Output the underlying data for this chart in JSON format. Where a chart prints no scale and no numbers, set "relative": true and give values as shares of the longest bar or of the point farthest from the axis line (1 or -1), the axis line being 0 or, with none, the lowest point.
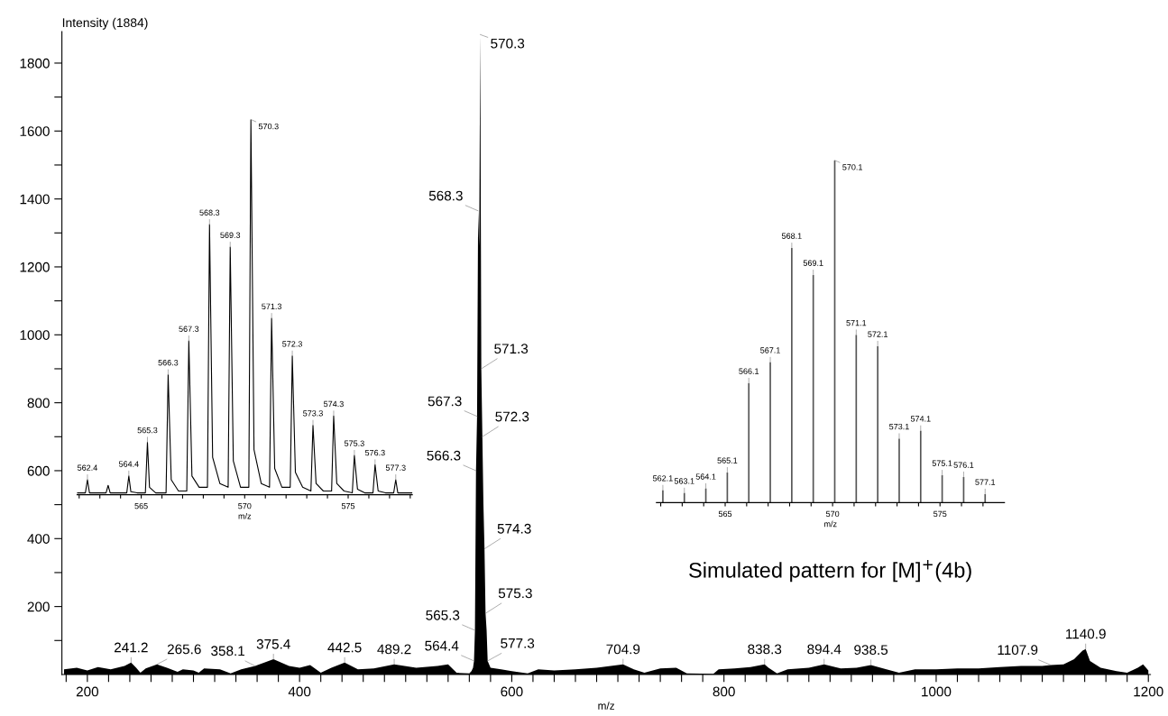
{
  "chart_data": [
    {
      "type": "area",
      "xlabel": "m/z",
      "ylabel": "Intensity (1884)",
      "x": [
        178,
        190,
        200,
        210,
        222,
        235,
        241.2,
        246,
        250,
        255,
        265.6,
        275,
        285,
        290,
        300,
        305,
        310,
        325,
        335,
        345,
        358.1,
        375.4,
        390,
        400,
        410,
        420,
        430,
        442.5,
        455,
        470,
        489.2,
        510,
        530,
        540,
        548,
        560,
        562,
        563.5,
        564.4,
        565.3,
        566.3,
        567.3,
        568.3,
        569.3,
        570.3,
        571.3,
        572.3,
        573.3,
        574.3,
        575.3,
        576.3,
        577.3,
        580,
        590,
        600,
        615,
        625,
        640,
        660,
        680,
        704.9,
        715,
        725,
        740,
        755,
        765,
        790,
        795,
        810,
        825,
        838.3,
        842,
        850,
        860,
        880,
        894.4,
        910,
        925,
        938.5,
        950,
        965,
        980,
        1000,
        1020,
        1040,
        1060,
        1080,
        1100,
        1107.9,
        1120,
        1130,
        1138,
        1140.9,
        1145,
        1155,
        1170,
        1180,
        1190,
        1195,
        1200
      ],
      "series": [
        {
          "color": "#000000",
          "values": [
            15,
            20,
            12,
            22,
            15,
            25,
            35,
            20,
            5,
            18,
            30,
            20,
            8,
            15,
            12,
            5,
            18,
            15,
            3,
            15,
            25,
            45,
            25,
            20,
            28,
            5,
            20,
            35,
            15,
            18,
            30,
            20,
            25,
            30,
            5,
            3,
            10,
            20,
            40,
            130,
            600,
            760,
            1365,
            1260,
            1884,
            900,
            700,
            500,
            370,
            180,
            130,
            40,
            20,
            15,
            10,
            3,
            15,
            12,
            15,
            20,
            30,
            15,
            5,
            18,
            20,
            3,
            2,
            15,
            18,
            22,
            30,
            20,
            3,
            15,
            20,
            30,
            18,
            20,
            28,
            18,
            5,
            15,
            15,
            18,
            18,
            22,
            25,
            25,
            28,
            30,
            45,
            70,
            75,
            40,
            20,
            10,
            5,
            20,
            30,
            12
          ]
        }
      ],
      "xlim": [
        176,
        1202
      ],
      "xticks": [
        {
          "value": 180,
          "label": null
        },
        200,
        {
          "value": 220,
          "label": null
        },
        {
          "value": 240,
          "label": null
        },
        {
          "value": 260,
          "label": null
        },
        {
          "value": 280,
          "label": null
        },
        {
          "value": 300,
          "label": null
        },
        {
          "value": 320,
          "label": null
        },
        {
          "value": 340,
          "label": null
        },
        {
          "value": 360,
          "label": null
        },
        {
          "value": 380,
          "label": null
        },
        400,
        {
          "value": 420,
          "label": null
        },
        {
          "value": 440,
          "label": null
        },
        {
          "value": 460,
          "label": null
        },
        {
          "value": 480,
          "label": null
        },
        {
          "value": 500,
          "label": null
        },
        {
          "value": 520,
          "label": null
        },
        {
          "value": 540,
          "label": null
        },
        {
          "value": 560,
          "label": null
        },
        {
          "value": 580,
          "label": null
        },
        600,
        {
          "value": 620,
          "label": null
        },
        {
          "value": 640,
          "label": null
        },
        {
          "value": 660,
          "label": null
        },
        {
          "value": 680,
          "label": null
        },
        {
          "value": 700,
          "label": null
        },
        {
          "value": 720,
          "label": null
        },
        {
          "value": 740,
          "label": null
        },
        {
          "value": 760,
          "label": null
        },
        {
          "value": 780,
          "label": null
        },
        800,
        {
          "value": 820,
          "label": null
        },
        {
          "value": 840,
          "label": null
        },
        {
          "value": 860,
          "label": null
        },
        {
          "value": 880,
          "label": null
        },
        {
          "value": 900,
          "label": null
        },
        {
          "value": 920,
          "label": null
        },
        {
          "value": 940,
          "label": null
        },
        {
          "value": 960,
          "label": null
        },
        {
          "value": 980,
          "label": null
        },
        1000,
        {
          "value": 1020,
          "label": null
        },
        {
          "value": 1040,
          "label": null
        },
        {
          "value": 1060,
          "label": null
        },
        {
          "value": 1080,
          "label": null
        },
        {
          "value": 1100,
          "label": null
        },
        {
          "value": 1120,
          "label": null
        },
        {
          "value": 1140,
          "label": null
        },
        {
          "value": 1160,
          "label": null
        },
        {
          "value": 1180,
          "label": null
        },
        1200
      ],
      "ylim": [
        0,
        1893
      ],
      "yticks": [
        {
          "value": 100,
          "label": null
        },
        200,
        {
          "value": 300,
          "label": null
        },
        400,
        {
          "value": 500,
          "label": null
        },
        600,
        {
          "value": 700,
          "label": null
        },
        800,
        {
          "value": 900,
          "label": null
        },
        1000,
        {
          "value": 1100,
          "label": null
        },
        1200,
        {
          "value": 1300,
          "label": null
        },
        1400,
        {
          "value": 1500,
          "label": null
        },
        1600,
        {
          "value": 1700,
          "label": null
        },
        1800
      ],
      "grid": false,
      "annotations": [
        {
          "text": "570.3",
          "x": 570.3,
          "y": 1884
        },
        {
          "text": "568.3",
          "x": 568.3,
          "y": 1365
        },
        {
          "text": "571.3",
          "x": 571.3,
          "y": 900
        },
        {
          "text": "567.3",
          "x": 567.3,
          "y": 760
        },
        {
          "text": "572.3",
          "x": 572.3,
          "y": 700
        },
        {
          "text": "566.3",
          "x": 566.3,
          "y": 600
        },
        {
          "text": "574.3",
          "x": 574.3,
          "y": 370
        },
        {
          "text": "575.3",
          "x": 575.3,
          "y": 180
        },
        {
          "text": "565.3",
          "x": 565.3,
          "y": 130
        },
        {
          "text": "564.4",
          "x": 564.4,
          "y": 40
        },
        {
          "text": "577.3",
          "x": 577.3,
          "y": 40
        },
        {
          "text": "241.2",
          "x": 241.2,
          "y": 35
        },
        {
          "text": "265.6",
          "x": 265.6,
          "y": 30
        },
        {
          "text": "358.1",
          "x": 358.1,
          "y": 25
        },
        {
          "text": "375.4",
          "x": 375.4,
          "y": 45
        },
        {
          "text": "442.5",
          "x": 442.5,
          "y": 35
        },
        {
          "text": "489.2",
          "x": 489.2,
          "y": 30
        },
        {
          "text": "704.9",
          "x": 704.9,
          "y": 30
        },
        {
          "text": "838.3",
          "x": 838.3,
          "y": 30
        },
        {
          "text": "894.4",
          "x": 894.4,
          "y": 30
        },
        {
          "text": "938.5",
          "x": 938.5,
          "y": 28
        },
        {
          "text": "1107.9",
          "x": 1107.9,
          "y": 28
        },
        {
          "text": "1140.9",
          "x": 1140.9,
          "y": 75
        }
      ]
    },
    {
      "type": "line",
      "xlabel": "m/z",
      "relative": true,
      "x": [
        561.9,
        562.3,
        562.4,
        562.5,
        562.9,
        563.3,
        563.4,
        563.5,
        564.3,
        564.4,
        564.5,
        564.8,
        565.2,
        565.3,
        565.4,
        565.7,
        566.2,
        566.3,
        566.45,
        566.8,
        567.2,
        567.3,
        567.45,
        567.8,
        568.2,
        568.3,
        568.45,
        568.8,
        569.2,
        569.3,
        569.45,
        569.8,
        570.2,
        570.3,
        570.45,
        570.8,
        571.2,
        571.3,
        571.45,
        571.8,
        572.2,
        572.3,
        572.45,
        572.8,
        573.2,
        573.3,
        573.45,
        573.8,
        574.2,
        574.3,
        574.45,
        574.8,
        575.2,
        575.3,
        575.45,
        575.8,
        576.2,
        576.3,
        576.45,
        576.8,
        577.2,
        577.3,
        577.4,
        578.1
      ],
      "series": [
        {
          "color": "#000000",
          "values": [
            0.005,
            0.005,
            0.04,
            0.005,
            0.005,
            0.005,
            0.025,
            0.005,
            0.005,
            0.05,
            0.008,
            0.005,
            0.005,
            0.14,
            0.02,
            0.005,
            0.005,
            0.32,
            0.04,
            0.01,
            0.01,
            0.41,
            0.05,
            0.02,
            0.02,
            0.72,
            0.1,
            0.03,
            0.02,
            0.66,
            0.09,
            0.02,
            0.02,
            1,
            0.12,
            0.03,
            0.02,
            0.47,
            0.07,
            0.02,
            0.02,
            0.37,
            0.06,
            0.02,
            0.01,
            0.185,
            0.03,
            0.01,
            0.01,
            0.21,
            0.03,
            0.01,
            0.005,
            0.105,
            0.015,
            0.005,
            0.005,
            0.08,
            0.01,
            0.005,
            0.005,
            0.04,
            0.005,
            0.005
          ]
        }
      ],
      "xlim": [
        561.9,
        578.1
      ],
      "xticks": [
        {
          "value": 562,
          "label": null
        },
        {
          "value": 563,
          "label": null
        },
        {
          "value": 564,
          "label": null
        },
        565,
        {
          "value": 566,
          "label": null
        },
        {
          "value": 567,
          "label": null
        },
        {
          "value": 568,
          "label": null
        },
        {
          "value": 569,
          "label": null
        },
        570,
        {
          "value": 571,
          "label": null
        },
        {
          "value": 572,
          "label": null
        },
        {
          "value": 573,
          "label": null
        },
        {
          "value": 574,
          "label": null
        },
        575,
        {
          "value": 576,
          "label": null
        },
        {
          "value": 577,
          "label": null
        },
        {
          "value": 578,
          "label": null
        }
      ],
      "grid": false,
      "annotations": [
        {
          "text": "562.4",
          "x": 562.4,
          "y": 0.04
        },
        {
          "text": "564.4",
          "x": 564.4,
          "y": 0.05
        },
        {
          "text": "565.3",
          "x": 565.3,
          "y": 0.14
        },
        {
          "text": "566.3",
          "x": 566.3,
          "y": 0.32
        },
        {
          "text": "567.3",
          "x": 567.3,
          "y": 0.41
        },
        {
          "text": "568.3",
          "x": 568.3,
          "y": 0.72
        },
        {
          "text": "569.3",
          "x": 569.3,
          "y": 0.66
        },
        {
          "text": "570.3",
          "x": 570.3,
          "y": 1
        },
        {
          "text": "571.3",
          "x": 571.3,
          "y": 0.47
        },
        {
          "text": "572.3",
          "x": 572.3,
          "y": 0.37
        },
        {
          "text": "573.3",
          "x": 573.3,
          "y": 0.185
        },
        {
          "text": "574.3",
          "x": 574.3,
          "y": 0.21
        },
        {
          "text": "575.3",
          "x": 575.3,
          "y": 0.105
        },
        {
          "text": "576.3",
          "x": 576.3,
          "y": 0.08
        },
        {
          "text": "577.3",
          "x": 577.3,
          "y": 0.04
        }
      ]
    },
    {
      "type": "bar",
      "xlabel": "m/z",
      "relative": true,
      "x": [
        562.1,
        563.1,
        564.1,
        565.1,
        566.1,
        567.1,
        568.1,
        569.1,
        570.1,
        571.1,
        572.1,
        573.1,
        574.1,
        575.1,
        576.1,
        577.1
      ],
      "series": [
        {
          "color": "#555555",
          "values": [
            0.036,
            0.028,
            0.041,
            0.088,
            0.349,
            0.41,
            0.744,
            0.665,
            1,
            0.49,
            0.457,
            0.187,
            0.21,
            0.08,
            0.075,
            0.025
          ]
        }
      ],
      "xlim": [
        561.8,
        578
      ],
      "xticks": [
        {
          "value": 562,
          "label": null
        },
        {
          "value": 563,
          "label": null
        },
        {
          "value": 564,
          "label": null
        },
        565,
        {
          "value": 566,
          "label": null
        },
        {
          "value": 567,
          "label": null
        },
        {
          "value": 568,
          "label": null
        },
        {
          "value": 569,
          "label": null
        },
        570,
        {
          "value": 571,
          "label": null
        },
        {
          "value": 572,
          "label": null
        },
        {
          "value": 573,
          "label": null
        },
        {
          "value": 574,
          "label": null
        },
        575,
        {
          "value": 576,
          "label": null
        },
        {
          "value": 577,
          "label": null
        }
      ],
      "grid": false,
      "annotations": [
        {
          "text": "562.1",
          "x": 562.1,
          "y": 0.036
        },
        {
          "text": "563.1",
          "x": 563.1,
          "y": 0.028
        },
        {
          "text": "564.1",
          "x": 564.1,
          "y": 0.041
        },
        {
          "text": "565.1",
          "x": 565.1,
          "y": 0.088
        },
        {
          "text": "566.1",
          "x": 566.1,
          "y": 0.349
        },
        {
          "text": "567.1",
          "x": 567.1,
          "y": 0.41
        },
        {
          "text": "568.1",
          "x": 568.1,
          "y": 0.744
        },
        {
          "text": "569.1",
          "x": 569.1,
          "y": 0.665
        },
        {
          "text": "570.1",
          "x": 570.1,
          "y": 1
        },
        {
          "text": "571.1",
          "x": 571.1,
          "y": 0.49
        },
        {
          "text": "572.1",
          "x": 572.1,
          "y": 0.457
        },
        {
          "text": "573.1",
          "x": 573.1,
          "y": 0.187
        },
        {
          "text": "574.1",
          "x": 574.1,
          "y": 0.21
        },
        {
          "text": "575.1",
          "x": 575.1,
          "y": 0.08
        },
        {
          "text": "576.1",
          "x": 576.1,
          "y": 0.075
        },
        {
          "text": "577.1",
          "x": 577.1,
          "y": 0.025
        },
        "Simulated pattern for [M]$^{+}$(4b)"
      ]
    }
  ]
}
